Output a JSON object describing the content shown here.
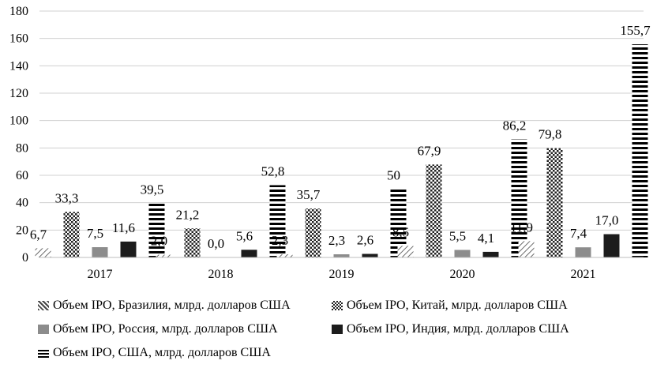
{
  "chart_data": {
    "type": "bar",
    "categories": [
      "2017",
      "2018",
      "2019",
      "2020",
      "2021"
    ],
    "ylim": [
      0,
      180
    ],
    "yticks": [
      0,
      20,
      40,
      60,
      80,
      100,
      120,
      140,
      160,
      180
    ],
    "grid": true,
    "legend_position": "bottom",
    "series": [
      {
        "name": "Объем IPO, Бразилия, млрд. долларов США",
        "pattern": "diagonal",
        "color": "#555555",
        "values": [
          6.7,
          2.0,
          2.3,
          8.5,
          11.9
        ],
        "labels": [
          "6,7",
          "2,0",
          "2,3",
          "8,5",
          "11,9"
        ]
      },
      {
        "name": "Объем IPO, Китай,  млрд. долларов США",
        "pattern": "checker",
        "color": "#333333",
        "values": [
          33.3,
          21.2,
          35.7,
          67.9,
          79.8
        ],
        "labels": [
          "33,3",
          "21,2",
          "35,7",
          "67,9",
          "79,8"
        ]
      },
      {
        "name": "Объем IPO, Россия,  млрд. долларов США",
        "pattern": "solid",
        "color": "#8c8c8c",
        "values": [
          7.5,
          0.0,
          2.3,
          5.5,
          7.4
        ],
        "labels": [
          "7,5",
          "0,0",
          "2,3",
          "5,5",
          "7,4"
        ]
      },
      {
        "name": "Объем IPO, Индия,  млрд. долларов США",
        "pattern": "solid",
        "color": "#1c1c1c",
        "values": [
          11.6,
          5.6,
          2.6,
          4.1,
          17.0
        ],
        "labels": [
          "11,6",
          "5,6",
          "2,6",
          "4,1",
          "17,0"
        ]
      },
      {
        "name": "Объем IPO, США,  млрд. долларов США",
        "pattern": "horizontal",
        "color": "#000000",
        "values": [
          39.5,
          52.8,
          50,
          86.2,
          155.7
        ],
        "labels": [
          "39,5",
          "52,8",
          "50",
          "86,2",
          "155,7"
        ]
      }
    ]
  }
}
